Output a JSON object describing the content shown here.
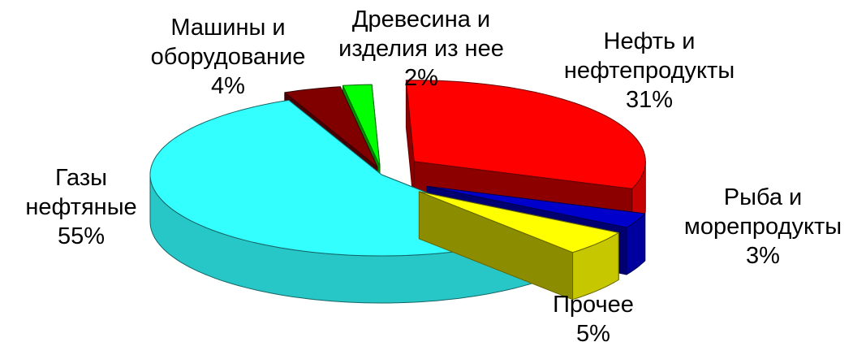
{
  "chart_data": {
    "type": "pie",
    "title": "",
    "slices": [
      {
        "label_lines": [
          "Нефть и",
          "нефтепродукты"
        ],
        "value": 31,
        "value_label": "31%",
        "color": "#ff0000"
      },
      {
        "label_lines": [
          "Рыба и",
          "морепродукты"
        ],
        "value": 3,
        "value_label": "3%",
        "color": "#0000cc"
      },
      {
        "label_lines": [
          "Прочее"
        ],
        "value": 5,
        "value_label": "5%",
        "color": "#ffff00"
      },
      {
        "label_lines": [
          "Газы",
          "нефтяные"
        ],
        "value": 55,
        "value_label": "55%",
        "color": "#33ffff"
      },
      {
        "label_lines": [
          "Машины и",
          "оборудование"
        ],
        "value": 4,
        "value_label": "4%",
        "color": "#800000"
      },
      {
        "label_lines": [
          "Древесина и",
          "изделия из нее"
        ],
        "value": 2,
        "value_label": "2%",
        "color": "#00ff00"
      }
    ],
    "legend": "none"
  }
}
